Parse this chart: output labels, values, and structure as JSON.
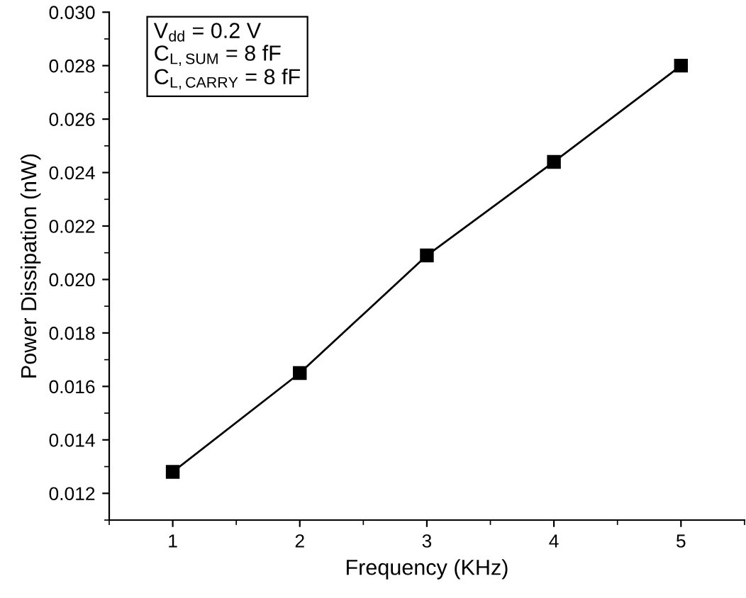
{
  "chart_data": {
    "type": "line",
    "xlabel": "Frequency (KHz)",
    "ylabel": "Power Dissipation (nW)",
    "x": [
      1,
      2,
      3,
      4,
      5
    ],
    "series": [
      {
        "color": "#000000",
        "values": [
          0.0128,
          0.0165,
          0.0209,
          0.0244,
          0.028
        ]
      }
    ],
    "marker": "square",
    "line_style": "solid",
    "grid": false,
    "legend": false,
    "xlim": [
      0.5,
      5.5
    ],
    "xticks": [
      1,
      2,
      3,
      4,
      5
    ],
    "ylim": [
      0.011,
      0.03
    ],
    "yticks": [
      {
        "value": 0.012,
        "label": "0.012"
      },
      {
        "value": 0.014,
        "label": "0.014"
      },
      {
        "value": 0.016,
        "label": "0.016"
      },
      {
        "value": 0.018,
        "label": "0.018"
      },
      {
        "value": 0.02,
        "label": "0.020"
      },
      {
        "value": 0.022,
        "label": "0.022"
      },
      {
        "value": 0.024,
        "label": "0.024"
      },
      {
        "value": 0.026,
        "label": "0.026"
      },
      {
        "value": 0.028,
        "label": "0.028"
      },
      {
        "value": 0.03,
        "label": "0.030"
      }
    ],
    "annotations": [
      "V$_{dd}$ = 0.2 V",
      "C$_{L,SUM}$ = 8 fF",
      "C$_{L,CARRY}$ = 8 fF"
    ]
  }
}
